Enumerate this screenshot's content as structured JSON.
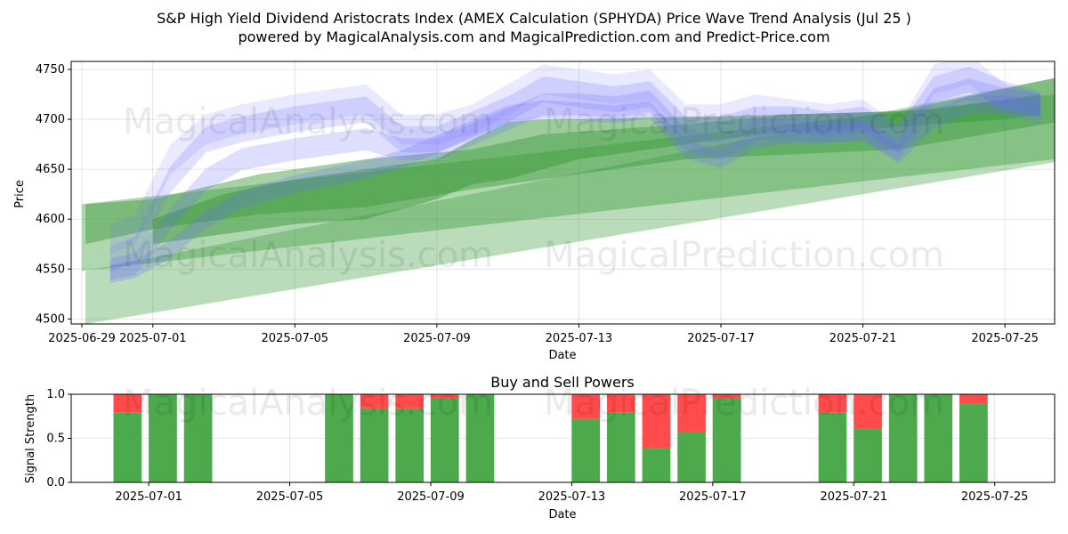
{
  "chart_data": [
    {
      "type": "area",
      "title_line1": "S&P High Yield Dividend Aristocrats Index (AMEX Calculation (SPHYDA) Price Wave Trend Analysis (Jul 25 )",
      "title_line2": "powered by MagicalAnalysis.com and MagicalPrediction.com and Predict-Price.com",
      "xlabel": "Date",
      "ylabel": "Price",
      "ylim": [
        4495,
        4758
      ],
      "yticks": [
        4500,
        4550,
        4600,
        4650,
        4700,
        4750
      ],
      "xticks": [
        "2025-06-29",
        "2025-07-01",
        "2025-07-05",
        "2025-07-09",
        "2025-07-13",
        "2025-07-17",
        "2025-07-21",
        "2025-07-25"
      ],
      "xtick_days": [
        -2,
        0,
        4,
        8,
        12,
        16,
        20,
        24
      ],
      "xlim_days": [
        -2.3,
        25.4
      ],
      "watermarks": [
        "MagicalAnalysis.com",
        "MagicalPrediction.com",
        "MagicalAnalysis.com",
        "MagicalPrediction.com"
      ],
      "blue_bands": [
        {
          "x": [
            -1.2,
            -0.5,
            0.5,
            1.5,
            2.5,
            4,
            6,
            7,
            8,
            9,
            10,
            11,
            12,
            13,
            14,
            15,
            16,
            17,
            18,
            19,
            20,
            21,
            22,
            23,
            24,
            25
          ],
          "y": [
            4580,
            4590,
            4660,
            4690,
            4700,
            4710,
            4720,
            4690,
            4690,
            4700,
            4720,
            4740,
            4735,
            4730,
            4735,
            4700,
            4700,
            4710,
            4705,
            4700,
            4705,
            4680,
            4740,
            4750,
            4720,
            4710
          ],
          "h": 30,
          "o": 0.15
        },
        {
          "x": [
            -1.2,
            -0.5,
            0.5,
            1.5,
            2.5,
            4,
            6,
            7,
            8,
            9,
            10,
            11,
            12,
            13,
            14,
            15,
            16,
            17,
            18,
            19,
            20,
            21,
            22,
            23,
            24,
            25
          ],
          "y": [
            4560,
            4570,
            4640,
            4680,
            4690,
            4700,
            4710,
            4680,
            4680,
            4695,
            4710,
            4730,
            4725,
            4720,
            4725,
            4690,
            4690,
            4700,
            4700,
            4695,
            4700,
            4680,
            4730,
            4740,
            4725,
            4715
          ],
          "h": 26,
          "o": 0.2
        },
        {
          "x": [
            -1.2,
            -0.5,
            0.5,
            1.5,
            2.5,
            4,
            6,
            7,
            8,
            9,
            10,
            11,
            12,
            13,
            14,
            15,
            16,
            17,
            18,
            19,
            20,
            21,
            22,
            23,
            24,
            25
          ],
          "y": [
            4550,
            4555,
            4600,
            4640,
            4660,
            4670,
            4680,
            4670,
            4670,
            4685,
            4700,
            4715,
            4715,
            4712,
            4718,
            4680,
            4670,
            4690,
            4690,
            4688,
            4690,
            4670,
            4720,
            4730,
            4720,
            4715
          ],
          "h": 22,
          "o": 0.22
        },
        {
          "x": [
            -1.2,
            -0.5,
            0.5,
            1.5,
            2.5,
            4,
            6,
            7,
            8,
            9,
            10,
            11,
            12,
            13,
            14,
            15,
            16,
            17,
            18,
            19,
            20,
            21,
            22,
            23,
            24,
            25
          ],
          "y": [
            4545,
            4550,
            4570,
            4600,
            4620,
            4635,
            4650,
            4660,
            4675,
            4690,
            4705,
            4710,
            4708,
            4705,
            4710,
            4670,
            4660,
            4680,
            4685,
            4685,
            4688,
            4665,
            4700,
            4715,
            4715,
            4710
          ],
          "h": 18,
          "o": 0.25
        }
      ],
      "green_bands": [
        {
          "x": [
            -2,
            25.9
          ],
          "y0": [
            4615,
            4727
          ],
          "y1": [
            4548,
            4662
          ],
          "o": 0.4
        },
        {
          "x": [
            -1.9,
            25.9
          ],
          "y0": [
            4548,
            4745
          ],
          "y1": [
            4495,
            4660
          ],
          "o": 0.35
        },
        {
          "x": [
            -1.9,
            0,
            3,
            6,
            9,
            11,
            15,
            18,
            21,
            25.9
          ],
          "y0": [
            4615,
            4620,
            4645,
            4660,
            4670,
            4685,
            4695,
            4705,
            4708,
            4745
          ],
          "y1": [
            4575,
            4590,
            4605,
            4612,
            4630,
            4640,
            4660,
            4665,
            4670,
            4700
          ],
          "o": 0.45
        },
        {
          "x": [
            0,
            2,
            4,
            6,
            8,
            9,
            10,
            11,
            12,
            14,
            16,
            18,
            20,
            22,
            24,
            25
          ],
          "y0": [
            4600,
            4625,
            4640,
            4650,
            4660,
            4680,
            4697,
            4700,
            4700,
            4702,
            4703,
            4705,
            4707,
            4710,
            4720,
            4725
          ],
          "y1": [
            4575,
            4585,
            4595,
            4600,
            4620,
            4635,
            4640,
            4650,
            4660,
            4670,
            4680,
            4688,
            4690,
            4695,
            4700,
            4705
          ],
          "o": 0.5
        }
      ]
    },
    {
      "type": "bar",
      "title": "Buy and Sell Powers",
      "xlabel": "Date",
      "ylabel": "Signal Strength",
      "ylim": [
        0,
        1
      ],
      "yticks": [
        "0.0",
        "0.5",
        "1.0"
      ],
      "xticks": [
        "2025-07-01",
        "2025-07-05",
        "2025-07-09",
        "2025-07-13",
        "2025-07-17",
        "2025-07-21",
        "2025-07-25"
      ],
      "xtick_days": [
        0,
        4,
        8,
        12,
        16,
        20,
        24
      ],
      "xlim_days": [
        -2.2,
        25.7
      ],
      "series": [
        {
          "name": "Buy",
          "color": "#4caa4c"
        },
        {
          "name": "Sell",
          "color": "#ff4b4b"
        }
      ],
      "bars": [
        {
          "day": -0.6,
          "buy": 0.79
        },
        {
          "day": 0.4,
          "buy": 1.0
        },
        {
          "day": 1.4,
          "buy": 1.0
        },
        {
          "day": 5.4,
          "buy": 1.0
        },
        {
          "day": 6.4,
          "buy": 0.84
        },
        {
          "day": 7.4,
          "buy": 0.84
        },
        {
          "day": 8.4,
          "buy": 0.96
        },
        {
          "day": 9.4,
          "buy": 1.0
        },
        {
          "day": 12.4,
          "buy": 0.72
        },
        {
          "day": 13.4,
          "buy": 0.79
        },
        {
          "day": 14.4,
          "buy": 0.39
        },
        {
          "day": 15.4,
          "buy": 0.57
        },
        {
          "day": 16.4,
          "buy": 0.95
        },
        {
          "day": 19.4,
          "buy": 0.79
        },
        {
          "day": 20.4,
          "buy": 0.61
        },
        {
          "day": 21.4,
          "buy": 1.0
        },
        {
          "day": 22.4,
          "buy": 1.0
        },
        {
          "day": 23.4,
          "buy": 0.89
        }
      ],
      "watermarks": [
        "MagicalAnalysis.com",
        "MagicalPrediction.com"
      ]
    }
  ]
}
